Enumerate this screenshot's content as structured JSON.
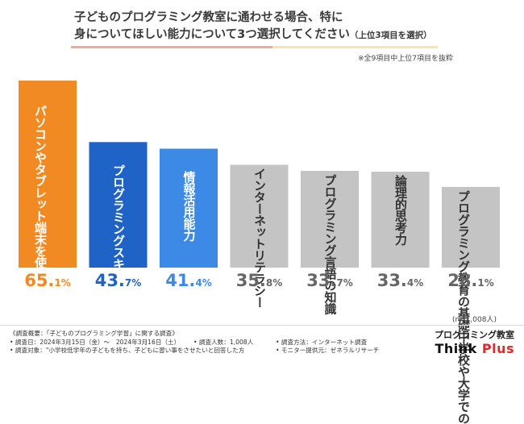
{
  "title": {
    "line1": "子どものプログラミング教室に通わせる場合、特に",
    "line2": "身についてほしい能力について3つ選択してください",
    "line2_sub": "（上位3項目を選択）"
  },
  "note_top": "※全9項目中上位7項目を抜粋",
  "colors": {
    "orange": "#f28a24",
    "blue_dark": "#1f63c6",
    "blue_light": "#3d8ae6",
    "gray": "#c4c4c4",
    "white_text": "#ffffff",
    "dark_text": "#333333"
  },
  "chart_data": {
    "type": "bar",
    "title": "子どものプログラミング教室に通わせる場合、特に身についてほしい能力について3つ選択してください（上位3項目を選択）",
    "categories": [
      "パソコンやタブレット端末を使うスキル",
      "プログラミングスキル",
      "情報活用能力",
      "インターネットリテラシー",
      "プログラミング言語の知識",
      "論理的思考力",
      "プログラミング教育の基礎中学校や大学での"
    ],
    "label_lines": [
      [
        "パソコンやタブレット",
        "端末を使うスキル"
      ],
      [
        "プログラミングスキル"
      ],
      [
        "情報活用能力"
      ],
      [
        "インターネットリテラシー"
      ],
      [
        "プログラミング言語の知識"
      ],
      [
        "論理的思考力"
      ],
      [
        "プログラミング教育の基礎",
        "中学校や大学での"
      ]
    ],
    "values": [
      65.1,
      43.7,
      41.4,
      35.8,
      33.7,
      33.4,
      28.1
    ],
    "value_labels": [
      {
        "int": "65.",
        "dec": "1%"
      },
      {
        "int": "43.",
        "dec": "7%"
      },
      {
        "int": "41.",
        "dec": "4%"
      },
      {
        "int": "35.",
        "dec": "8%"
      },
      {
        "int": "33.",
        "dec": "7%"
      },
      {
        "int": "33.",
        "dec": "4%"
      },
      {
        "int": "28.",
        "dec": "1%"
      }
    ],
    "ylim": [
      0,
      65.1
    ],
    "xlabel": "",
    "ylabel": ""
  },
  "n_note": "(n=1,008人)",
  "footer": {
    "summary": "《調査概要：「子どものプログラミング学習」に関する調査》",
    "date": "• 調査日：2024年3月15日（金）～　2024年3月16日（土）",
    "people": "• 調査人数：1,008人",
    "method": "• 調査方法：インターネット調査",
    "target": "• 調査対象：\"小学校低学年の子どもを持ち、子どもに習い事をさせたいと回答した方",
    "monitor": "• モニター提供元：ゼネラルリサーチ"
  },
  "brand": {
    "line1": "プログラミング教室",
    "think": "Think ",
    "plus": "Plus"
  }
}
